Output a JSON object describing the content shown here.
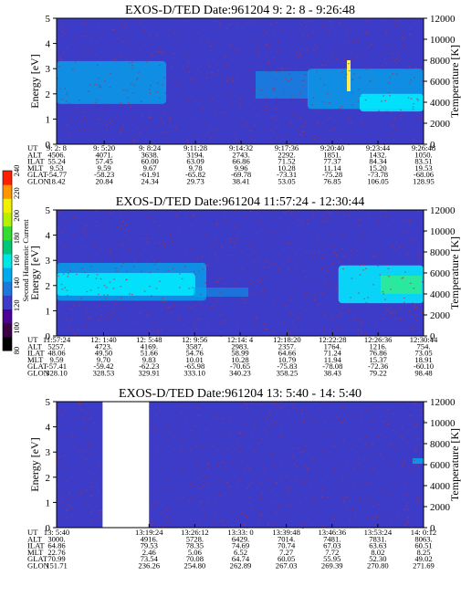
{
  "colors": {
    "background": "#3c3cc8",
    "low": "#3c3cc8",
    "mid": "#00aaee",
    "high": "#00eeff",
    "peak": "#33ee88",
    "speck": "#b03040",
    "gap": "#ffffff"
  },
  "colorbar": {
    "label": "Second Harmonic Current",
    "ticks": [
      "80",
      "100",
      "120",
      "140",
      "160",
      "180",
      "200",
      "220",
      "240"
    ],
    "colors": [
      "#000000",
      "#3c0046",
      "#4b0096",
      "#3c3cc8",
      "#1e78dc",
      "#00aaee",
      "#00e6e6",
      "#00c878",
      "#32dc32",
      "#b4f000",
      "#f0f000",
      "#ff9600",
      "#ff1e00"
    ]
  },
  "chart_data": [
    {
      "type": "heatmap",
      "title": "EXOS-D/TED   Date:961204   9: 2: 8 - 9:26:48",
      "ylabel": "Energy [eV]",
      "y2label": "Temperature [K]",
      "ylim": [
        0,
        5
      ],
      "y2lim": [
        0,
        12000
      ],
      "yticks": [
        "0",
        "1",
        "2",
        "3",
        "4",
        "5"
      ],
      "y2ticks": [
        "0",
        "2000",
        "4000",
        "6000",
        "8000",
        "10000",
        "12000"
      ],
      "row_labels": [
        "UT",
        "ALT",
        "ILAT",
        "MLT",
        "GLAT",
        "GLON"
      ],
      "columns": [
        [
          "9: 2: 8",
          "4506.",
          "55.24",
          "9.53",
          "-54.77",
          "18.42"
        ],
        [
          "9: 5:20",
          "4071.",
          "57.45",
          "9.59",
          "-58.23",
          "20.84"
        ],
        [
          "9: 8:24",
          "3638.",
          "60.00",
          "9.67",
          "-61.91",
          "24.34"
        ],
        [
          "9:11:28",
          "3194.",
          "63.09",
          "9.78",
          "-65.82",
          "29.73"
        ],
        [
          "9:14:32",
          "2743.",
          "66.86",
          "9.96",
          "-69.78",
          "38.41"
        ],
        [
          "9:17:36",
          "2292.",
          "71.52",
          "10.28",
          "-73.31",
          "53.05"
        ],
        [
          "9:20:40",
          "1851.",
          "77.37",
          "11.14",
          "-75.28",
          "76.85"
        ],
        [
          "9:23:44",
          "1432.",
          "84.34",
          "15.20",
          "-73.78",
          "106.05"
        ],
        [
          "9:26:48",
          "1050.",
          "83.51",
          "19.53",
          "-68.06",
          "128.95"
        ]
      ],
      "bands": [
        {
          "energy": [
            1.6,
            3.3
          ],
          "time": [
            "9: 2: 8",
            "9: 9:30"
          ],
          "level": "mid"
        },
        {
          "energy": [
            1.4,
            3.0
          ],
          "time": [
            "9:19:00",
            "9:26:48"
          ],
          "level": "mid"
        },
        {
          "energy": [
            1.3,
            2.0
          ],
          "time": [
            "9:22:30",
            "9:26:48"
          ],
          "level": "high"
        }
      ]
    },
    {
      "type": "heatmap",
      "title": "EXOS-D/TED   Date:961204   11:57:24 - 12:30:44",
      "ylabel": "Energy [eV]",
      "y2label": "Temperature [K]",
      "ylim": [
        0,
        5
      ],
      "y2lim": [
        0,
        12000
      ],
      "yticks": [
        "0",
        "1",
        "2",
        "3",
        "4",
        "5"
      ],
      "y2ticks": [
        "0",
        "2000",
        "4000",
        "6000",
        "8000",
        "10000",
        "12000"
      ],
      "row_labels": [
        "UT",
        "ALT",
        "ILAT",
        "MLT",
        "GLAT",
        "GLON"
      ],
      "columns": [
        [
          "11:57:24",
          "5257.",
          "48.06",
          "9.59",
          "-57.41",
          "328.10"
        ],
        [
          "12: 1:40",
          "4723.",
          "49.50",
          "9.70",
          "-59.42",
          "328.53"
        ],
        [
          "12: 5:48",
          "4169.",
          "51.66",
          "9.83",
          "-62.23",
          "329.91"
        ],
        [
          "12: 9:56",
          "3587.",
          "54.76",
          "10.01",
          "-65.98",
          "333.10"
        ],
        [
          "12:14: 4",
          "2983.",
          "58.99",
          "10.28",
          "-70.65",
          "340.23"
        ],
        [
          "12:18:20",
          "2357.",
          "64.66",
          "10.79",
          "-75.83",
          "358.25"
        ],
        [
          "12:22:28",
          "1764.",
          "71.24",
          "11.94",
          "-78.08",
          "38.43"
        ],
        [
          "12:26:36",
          "1216.",
          "76.86",
          "15.37",
          "-72.36",
          "79.22"
        ],
        [
          "12:30:44",
          "754.",
          "73.05",
          "18.91",
          "-60.10",
          "98.48"
        ]
      ],
      "bands": [
        {
          "energy": [
            1.4,
            2.9
          ],
          "time": [
            "11:57:24",
            "12:11:00"
          ],
          "level": "mid"
        },
        {
          "energy": [
            1.6,
            2.5
          ],
          "time": [
            "11:57:24",
            "12:10:00"
          ],
          "level": "high"
        },
        {
          "energy": [
            1.3,
            2.8
          ],
          "time": [
            "12:23:00",
            "12:30:44"
          ],
          "level": "high"
        }
      ]
    },
    {
      "type": "heatmap",
      "title": "EXOS-D/TED   Date:961204   13: 5:40 - 14: 5:40",
      "ylabel": "Energy [eV]",
      "y2label": "Temperature [K]",
      "ylim": [
        0,
        5
      ],
      "y2lim": [
        0,
        12000
      ],
      "yticks": [
        "0",
        "1",
        "2",
        "3",
        "4",
        "5"
      ],
      "y2ticks": [
        "0",
        "2000",
        "4000",
        "6000",
        "8000",
        "10000",
        "12000"
      ],
      "row_labels": [
        "UT",
        "ALT",
        "ILAT",
        "MLT",
        "GLAT",
        "GLON"
      ],
      "columns": [
        [
          "13: 5:40",
          "3000.",
          "64.86",
          "22.76",
          "70.99",
          "151.71"
        ],
        [
          "",
          "",
          "",
          "",
          "",
          ""
        ],
        [
          "13:19:24",
          "4916.",
          "79.53",
          "2.46",
          "73.54",
          "236.26"
        ],
        [
          "13:26:12",
          "5728.",
          "78.35",
          "5.06",
          "70.08",
          "254.80"
        ],
        [
          "13:33: 0",
          "6429.",
          "74.69",
          "6.52",
          "64.74",
          "262.89"
        ],
        [
          "13:39:48",
          "7014.",
          "70.74",
          "7.27",
          "60.05",
          "267.03"
        ],
        [
          "13:46:36",
          "7481.",
          "67.03",
          "7.72",
          "55.95",
          "269.39"
        ],
        [
          "13:53:24",
          "7831.",
          "63.63",
          "8.02",
          "52.30",
          "270.80"
        ],
        [
          "14: 0:12",
          "8063.",
          "60.51",
          "8.25",
          "49.02",
          "271.69"
        ]
      ],
      "data_gap": {
        "time": [
          "13:12:30",
          "13:19:24"
        ]
      },
      "bands": []
    }
  ]
}
